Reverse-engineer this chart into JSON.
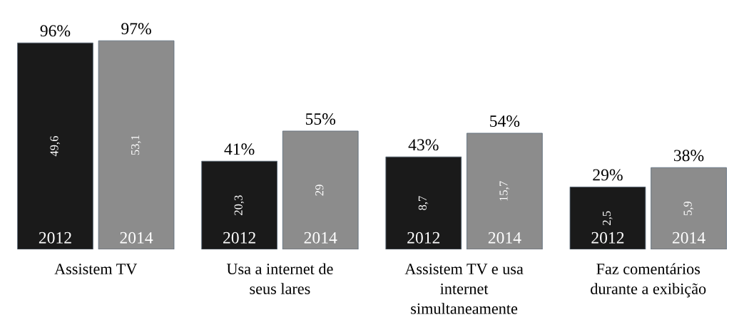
{
  "chart_data": {
    "type": "bar",
    "categories": [
      "Assistem TV",
      "Usa a internet de\nseus lares",
      "Assistem TV e usa\ninternet\nsimultaneamente",
      "Faz comentários\ndurante a exibição"
    ],
    "series": [
      {
        "name": "2012",
        "color": "#1a1a1a",
        "values": [
          96,
          41,
          43,
          29
        ],
        "value_labels": [
          "96%",
          "41%",
          "43%",
          "29%"
        ]
      },
      {
        "name": "2014",
        "color": "#8c8c8c",
        "values": [
          97,
          55,
          54,
          38
        ],
        "value_labels": [
          "97%",
          "55%",
          "54%",
          "38%"
        ]
      }
    ],
    "annotations": [
      "49,6",
      "20,3",
      "8,7",
      "2,5",
      "53,1",
      "29",
      "15,7",
      "5,9"
    ],
    "legend": false,
    "grid": false,
    "tick_labels": "x"
  }
}
